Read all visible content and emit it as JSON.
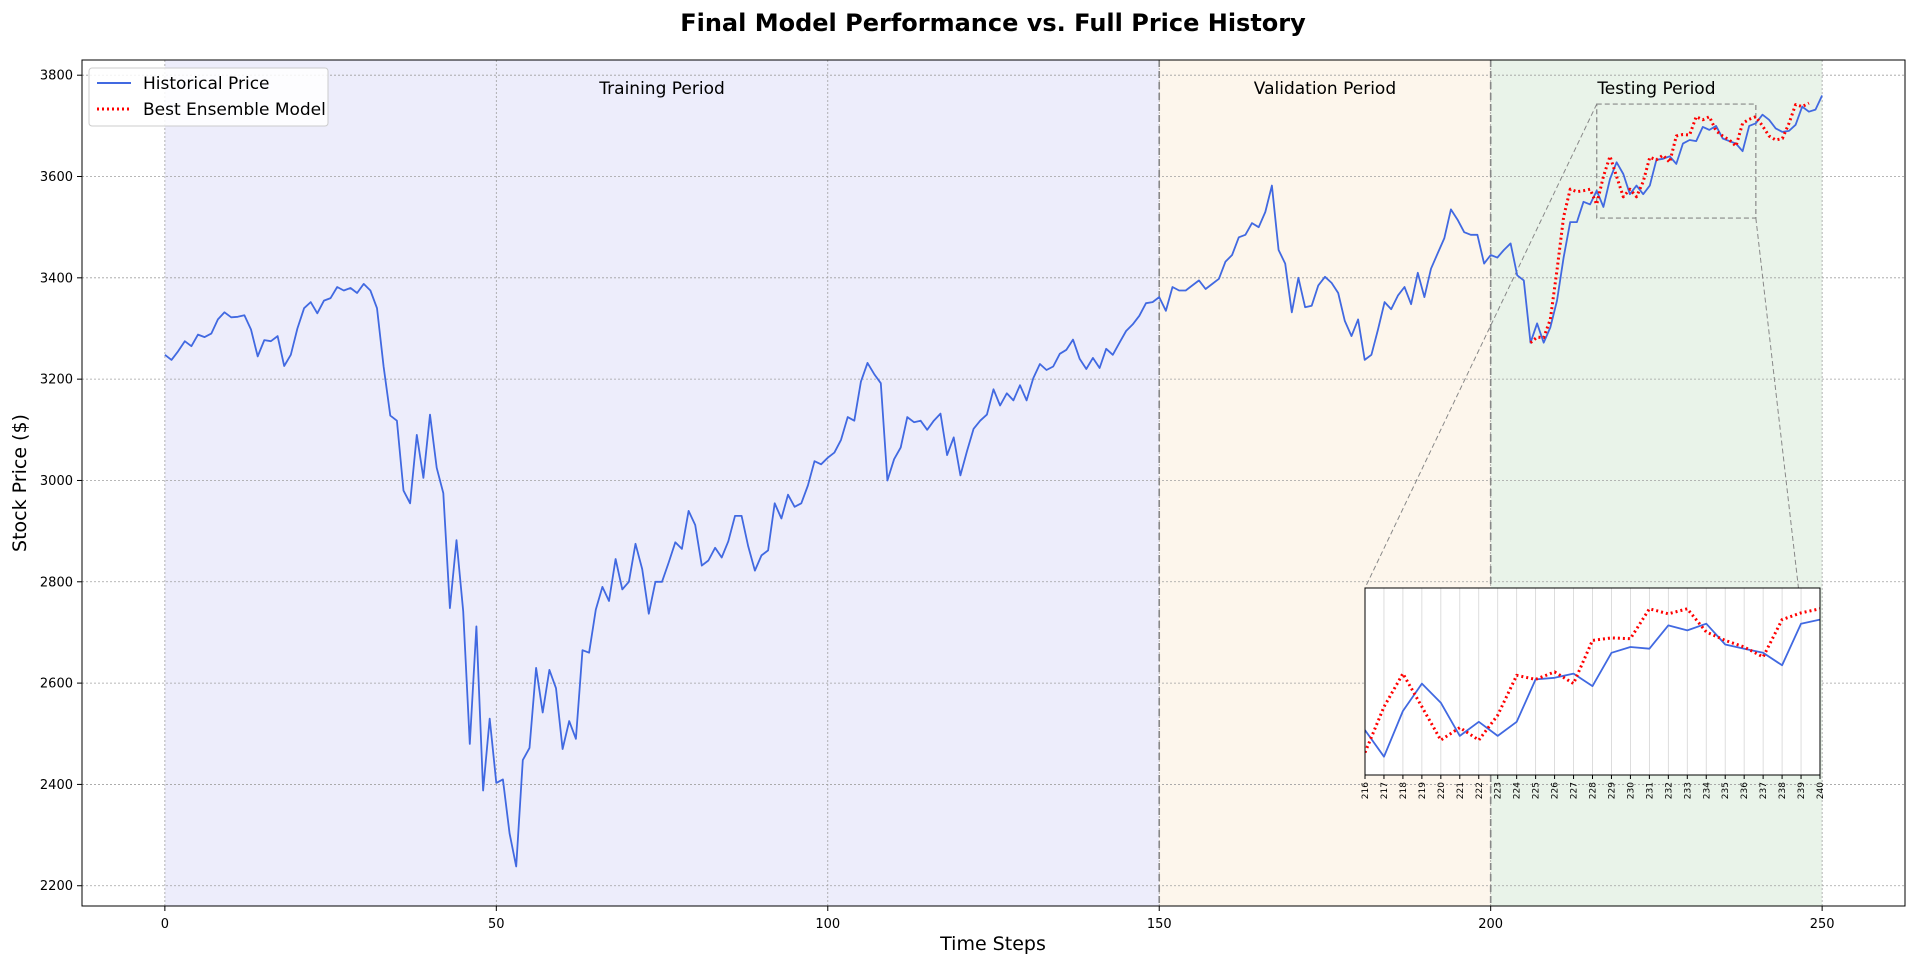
{
  "chart_data": {
    "type": "line",
    "title": "Final Model Performance vs. Full Price History",
    "xlabel": "Time Steps",
    "ylabel": "Stock Price ($)",
    "xlim": [
      -12.5,
      262.5
    ],
    "ylim": [
      2160,
      3830
    ],
    "xticks": [
      0,
      50,
      100,
      150,
      200,
      250
    ],
    "yticks": [
      2200,
      2400,
      2600,
      2800,
      3000,
      3200,
      3400,
      3600,
      3800
    ],
    "grid": true,
    "legend_position": "upper-left",
    "periods": [
      {
        "label": "Training Period",
        "start": 0,
        "end": 150,
        "color": "#ededfb"
      },
      {
        "label": "Validation Period",
        "start": 150,
        "end": 200,
        "color": "#fdf6ec"
      },
      {
        "label": "Testing Period",
        "start": 200,
        "end": 250,
        "color": "#e9f3e9"
      }
    ],
    "series": [
      {
        "name": "Historical Price",
        "color": "#4169e1",
        "style": "solid",
        "x_start": 0,
        "values": [
          3248,
          3238,
          3255,
          3275,
          3265,
          3288,
          3283,
          3290,
          3318,
          3332,
          3322,
          3323,
          3326,
          3298,
          3245,
          3277,
          3275,
          3285,
          3226,
          3248,
          3300,
          3340,
          3352,
          3330,
          3355,
          3360,
          3382,
          3375,
          3380,
          3370,
          3388,
          3375,
          3340,
          3225,
          3128,
          3118,
          2980,
          2955,
          3090,
          3005,
          3130,
          3025,
          2975,
          2748,
          2882,
          2742,
          2480,
          2712,
          2388,
          2530,
          2403,
          2410,
          2303,
          2238,
          2448,
          2472,
          2630,
          2542,
          2626,
          2590,
          2470,
          2525,
          2490,
          2665,
          2660,
          2745,
          2790,
          2762,
          2845,
          2785,
          2800,
          2875,
          2825,
          2737,
          2800,
          2800,
          2838,
          2878,
          2865,
          2940,
          2912,
          2832,
          2842,
          2867,
          2848,
          2880,
          2930,
          2930,
          2870,
          2822,
          2852,
          2862,
          2955,
          2925,
          2972,
          2948,
          2955,
          2990,
          3038,
          3032,
          3045,
          3055,
          3080,
          3125,
          3118,
          3195,
          3232,
          3210,
          3192,
          3000,
          3042,
          3065,
          3125,
          3115,
          3118,
          3100,
          3118,
          3132,
          3050,
          3085,
          3010,
          3058,
          3102,
          3118,
          3130,
          3180,
          3148,
          3172,
          3158,
          3188,
          3158,
          3202,
          3230,
          3218,
          3225,
          3250,
          3258,
          3278,
          3240,
          3220,
          3242,
          3222,
          3260,
          3248,
          3272,
          3295,
          3308,
          3325,
          3350,
          3352,
          3362,
          3335,
          3382,
          3375,
          3375,
          3385,
          3395,
          3378,
          3388,
          3398,
          3432,
          3445,
          3480,
          3485,
          3508,
          3500,
          3530,
          3582,
          3455,
          3428,
          3332,
          3400,
          3342,
          3345,
          3385,
          3402,
          3390,
          3370,
          3315,
          3285,
          3318,
          3238,
          3248,
          3298,
          3352,
          3338,
          3365,
          3382,
          3348,
          3410,
          3362,
          3418,
          3448,
          3478,
          3535,
          3515,
          3490,
          3485,
          3485,
          3428,
          3445,
          3440,
          3455,
          3468,
          3405,
          3395,
          3272,
          3310,
          3272,
          3302,
          3355,
          3440,
          3510,
          3510,
          3550,
          3545,
          3572,
          3540,
          3595,
          3628,
          3605,
          3565,
          3582,
          3565,
          3582,
          3633,
          3635,
          3640,
          3625,
          3665,
          3672,
          3670,
          3698,
          3692,
          3700,
          3675,
          3670,
          3665,
          3650,
          3700,
          3705,
          3722,
          3712,
          3695,
          3688,
          3690,
          3702,
          3738,
          3728,
          3732,
          3760
        ]
      },
      {
        "name": "Best Ensemble Model",
        "color": "#ff0000",
        "style": "dotted",
        "x_start": 206,
        "values": [
          3272,
          3283,
          3282,
          3318,
          3415,
          3520,
          3575,
          3570,
          3572,
          3575,
          3545,
          3600,
          3640,
          3600,
          3560,
          3575,
          3560,
          3590,
          3638,
          3633,
          3642,
          3628,
          3680,
          3683,
          3682,
          3718,
          3712,
          3718,
          3690,
          3680,
          3672,
          3660,
          3705,
          3713,
          3718,
          3700,
          3680,
          3672,
          3675,
          3705,
          3742,
          3738,
          3745
        ]
      }
    ],
    "inset": {
      "xlim": [
        216,
        240
      ],
      "ylim": [
        3518,
        3743
      ],
      "xticks": [
        216,
        217,
        218,
        219,
        220,
        221,
        222,
        223,
        224,
        225,
        226,
        227,
        228,
        229,
        230,
        231,
        232,
        233,
        234,
        235,
        236,
        237,
        238,
        239,
        240
      ]
    }
  }
}
